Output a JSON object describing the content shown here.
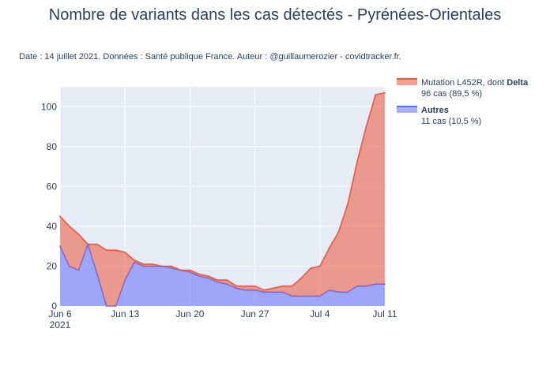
{
  "chart_data": {
    "type": "area",
    "title": "Nombre de variants dans les cas détectés - Pyrénées-Orientales",
    "subtitle": "Date : 14 juillet 2021. Données : Santé publique France. Auteur : @guillaumerozier - covidtracker.fr.",
    "xlabel": "",
    "ylabel": "",
    "x_start": "2021-06-06",
    "x_end": "2021-07-11",
    "x_ticks": [
      {
        "date": "2021-06-06",
        "label": "Jun 6",
        "sublabel": "2021"
      },
      {
        "date": "2021-06-13",
        "label": "Jun 13"
      },
      {
        "date": "2021-06-20",
        "label": "Jun 20"
      },
      {
        "date": "2021-06-27",
        "label": "Jun 27"
      },
      {
        "date": "2021-07-04",
        "label": "Jul 4"
      },
      {
        "date": "2021-07-11",
        "label": "Jul 11"
      }
    ],
    "ylim": [
      0,
      110
    ],
    "y_ticks": [
      0,
      20,
      40,
      60,
      80,
      100
    ],
    "grid": true,
    "stacked": true,
    "legend_position": "top-right",
    "dates": [
      "2021-06-06",
      "2021-06-07",
      "2021-06-08",
      "2021-06-09",
      "2021-06-10",
      "2021-06-11",
      "2021-06-12",
      "2021-06-13",
      "2021-06-14",
      "2021-06-15",
      "2021-06-16",
      "2021-06-17",
      "2021-06-18",
      "2021-06-19",
      "2021-06-20",
      "2021-06-21",
      "2021-06-22",
      "2021-06-23",
      "2021-06-24",
      "2021-06-25",
      "2021-06-26",
      "2021-06-27",
      "2021-06-28",
      "2021-06-29",
      "2021-06-30",
      "2021-07-01",
      "2021-07-02",
      "2021-07-03",
      "2021-07-04",
      "2021-07-05",
      "2021-07-06",
      "2021-07-07",
      "2021-07-08",
      "2021-07-09",
      "2021-07-10",
      "2021-07-11"
    ],
    "series": [
      {
        "name": "Autres",
        "legend_label": "Autres",
        "legend_detail": "11 cas (10,5 %)",
        "color": "#636efa",
        "fill": "rgba(99,110,250,0.55)",
        "values": [
          30,
          20,
          18,
          31,
          16,
          0,
          0,
          13,
          22,
          20,
          20,
          20,
          19,
          18,
          17,
          15,
          14,
          12,
          11,
          9,
          8,
          8,
          7,
          7,
          7,
          5,
          5,
          5,
          5,
          8,
          7,
          7,
          10,
          10,
          11,
          11
        ]
      },
      {
        "name": "Mutation L452R, dont Delta",
        "legend_label": "Mutation L452R, dont ",
        "legend_label_bold": "Delta",
        "legend_detail": "96 cas (89,5 %)",
        "color": "#ef553b",
        "fill": "rgba(239,85,59,0.55)",
        "values": [
          15,
          20,
          18,
          0,
          15,
          28,
          28,
          14,
          1,
          1,
          1,
          0,
          1,
          0,
          1,
          1,
          1,
          1,
          2,
          1,
          2,
          2,
          1,
          2,
          3,
          5,
          9,
          14,
          15,
          21,
          30,
          44,
          62,
          80,
          95,
          96
        ]
      }
    ]
  }
}
